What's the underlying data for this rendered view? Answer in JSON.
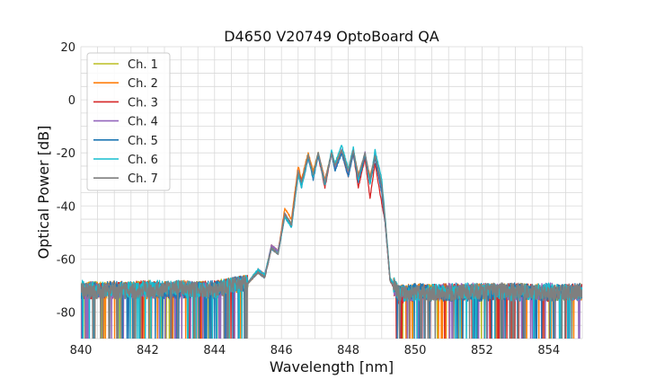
{
  "chart_data": {
    "type": "line",
    "title": "D4650 V20749 OptoBoard QA",
    "xlabel": "Wavelength [nm]",
    "ylabel": "Optical Power [dB]",
    "xlim": [
      840,
      855
    ],
    "ylim": [
      -90,
      20
    ],
    "xticks": [
      840,
      842,
      844,
      846,
      848,
      850,
      852,
      854
    ],
    "yticks": [
      20,
      0,
      -20,
      -40,
      -60,
      -80
    ],
    "grid": true,
    "legend_position": "top-left",
    "series": [
      {
        "name": "Ch. 1",
        "color": "#bcbd22",
        "x": [
          840,
          841,
          842,
          843,
          844,
          844.5,
          845,
          845.3,
          845.5,
          845.7,
          845.9,
          846.1,
          846.3,
          846.5,
          846.6,
          846.8,
          846.95,
          847.1,
          847.3,
          847.5,
          847.6,
          847.8,
          848.0,
          848.15,
          848.3,
          848.5,
          848.65,
          848.8,
          849.0,
          849.1,
          849.25,
          849.5,
          850,
          851,
          852,
          853,
          854,
          855
        ],
        "y": [
          -71,
          -72,
          -71,
          -72,
          -71,
          -70,
          -69,
          -64,
          -66,
          -55,
          -57,
          -43,
          -47,
          -27,
          -31,
          -21,
          -27,
          -20,
          -31,
          -20,
          -25,
          -19,
          -27,
          -19,
          -29,
          -21,
          -30,
          -22,
          -33,
          -45,
          -68,
          -73,
          -73,
          -72,
          -73,
          -72,
          -73,
          -72
        ]
      },
      {
        "name": "Ch. 2",
        "color": "#ff7f0e",
        "x": [
          840,
          841,
          842,
          843,
          844,
          844.5,
          845,
          845.3,
          845.5,
          845.7,
          845.9,
          846.1,
          846.3,
          846.5,
          846.6,
          846.8,
          846.95,
          847.1,
          847.3,
          847.5,
          847.6,
          847.8,
          848.0,
          848.15,
          848.3,
          848.5,
          848.65,
          848.8,
          849.0,
          849.1,
          849.25,
          849.5,
          850,
          851,
          852,
          853,
          854,
          855
        ],
        "y": [
          -72,
          -71,
          -72,
          -71,
          -72,
          -70,
          -69,
          -65,
          -67,
          -55,
          -57,
          -41,
          -45,
          -25,
          -30,
          -20,
          -27,
          -20,
          -30,
          -20,
          -24,
          -19,
          -26,
          -19,
          -28,
          -21,
          -29,
          -21,
          -32,
          -45,
          -68,
          -73,
          -72,
          -73,
          -72,
          -73,
          -72,
          -73
        ]
      },
      {
        "name": "Ch. 3",
        "color": "#d62728",
        "x": [
          840,
          841,
          842,
          843,
          844,
          844.5,
          845,
          845.3,
          845.5,
          845.7,
          845.9,
          846.1,
          846.3,
          846.5,
          846.6,
          846.8,
          846.95,
          847.1,
          847.3,
          847.5,
          847.6,
          847.8,
          848.0,
          848.15,
          848.3,
          848.5,
          848.65,
          848.8,
          849.0,
          849.1,
          849.25,
          849.5,
          850,
          851,
          852,
          853,
          854,
          855
        ],
        "y": [
          -72,
          -72,
          -71,
          -72,
          -71,
          -70,
          -69,
          -65,
          -67,
          -56,
          -58,
          -43,
          -47,
          -27,
          -31,
          -21,
          -29,
          -21,
          -33,
          -20,
          -26,
          -20,
          -29,
          -20,
          -33,
          -22,
          -37,
          -24,
          -39,
          -46,
          -68,
          -74,
          -73,
          -72,
          -73,
          -72,
          -73,
          -72
        ]
      },
      {
        "name": "Ch. 4",
        "color": "#9467bd",
        "x": [
          840,
          841,
          842,
          843,
          844,
          844.5,
          845,
          845.3,
          845.5,
          845.7,
          845.9,
          846.1,
          846.3,
          846.5,
          846.6,
          846.8,
          846.95,
          847.1,
          847.3,
          847.5,
          847.6,
          847.8,
          848.0,
          848.15,
          848.3,
          848.5,
          848.65,
          848.8,
          849.0,
          849.1,
          849.25,
          849.5,
          850,
          851,
          852,
          853,
          854,
          855
        ],
        "y": [
          -71,
          -72,
          -72,
          -71,
          -72,
          -70,
          -69,
          -64,
          -66,
          -55,
          -57,
          -43,
          -47,
          -27,
          -32,
          -21,
          -29,
          -20,
          -31,
          -20,
          -26,
          -19,
          -28,
          -19,
          -30,
          -20,
          -31,
          -21,
          -33,
          -45,
          -68,
          -73,
          -73,
          -72,
          -72,
          -73,
          -72,
          -73
        ]
      },
      {
        "name": "Ch. 5",
        "color": "#1f77b4",
        "x": [
          840,
          841,
          842,
          843,
          844,
          844.5,
          845,
          845.3,
          845.5,
          845.7,
          845.9,
          846.1,
          846.3,
          846.5,
          846.6,
          846.8,
          846.95,
          847.1,
          847.3,
          847.5,
          847.6,
          847.8,
          848.0,
          848.15,
          848.3,
          848.5,
          848.65,
          848.8,
          849.0,
          849.1,
          849.25,
          849.5,
          850,
          851,
          852,
          853,
          854,
          855
        ],
        "y": [
          -72,
          -71,
          -72,
          -72,
          -71,
          -70,
          -69,
          -65,
          -67,
          -56,
          -58,
          -44,
          -48,
          -28,
          -33,
          -22,
          -30,
          -21,
          -32,
          -20,
          -27,
          -20,
          -29,
          -20,
          -31,
          -21,
          -32,
          -22,
          -35,
          -46,
          -68,
          -73,
          -72,
          -73,
          -73,
          -72,
          -73,
          -72
        ]
      },
      {
        "name": "Ch. 6",
        "color": "#17becf",
        "x": [
          840,
          841,
          842,
          843,
          844,
          844.5,
          845,
          845.3,
          845.5,
          845.7,
          845.9,
          846.1,
          846.3,
          846.5,
          846.6,
          846.8,
          846.95,
          847.1,
          847.3,
          847.5,
          847.6,
          847.8,
          848.0,
          848.15,
          848.3,
          848.5,
          848.65,
          848.8,
          849.0,
          849.1,
          849.25,
          849.5,
          850,
          851,
          852,
          853,
          854,
          855
        ],
        "y": [
          -71,
          -72,
          -71,
          -71,
          -72,
          -70,
          -69,
          -64,
          -66,
          -56,
          -58,
          -44,
          -48,
          -28,
          -33,
          -21,
          -29,
          -20,
          -32,
          -19,
          -24,
          -17,
          -26,
          -18,
          -30,
          -20,
          -32,
          -19,
          -30,
          -44,
          -67,
          -73,
          -73,
          -72,
          -72,
          -73,
          -72,
          -73
        ]
      },
      {
        "name": "Ch. 7",
        "color": "#7f7f7f",
        "x": [
          840,
          841,
          842,
          843,
          844,
          844.5,
          845,
          845.3,
          845.5,
          845.7,
          845.9,
          846.1,
          846.3,
          846.5,
          846.6,
          846.8,
          846.95,
          847.1,
          847.3,
          847.5,
          847.6,
          847.8,
          848.0,
          848.15,
          848.3,
          848.5,
          848.65,
          848.8,
          849.0,
          849.1,
          849.25,
          849.5,
          850,
          851,
          852,
          853,
          854,
          855
        ],
        "y": [
          -72,
          -72,
          -72,
          -71,
          -72,
          -70,
          -69,
          -65,
          -67,
          -56,
          -58,
          -43,
          -47,
          -27,
          -31,
          -21,
          -28,
          -20,
          -31,
          -20,
          -25,
          -19,
          -27,
          -19,
          -29,
          -20,
          -30,
          -21,
          -32,
          -45,
          -68,
          -73,
          -73,
          -73,
          -72,
          -72,
          -73,
          -72
        ]
      }
    ]
  }
}
